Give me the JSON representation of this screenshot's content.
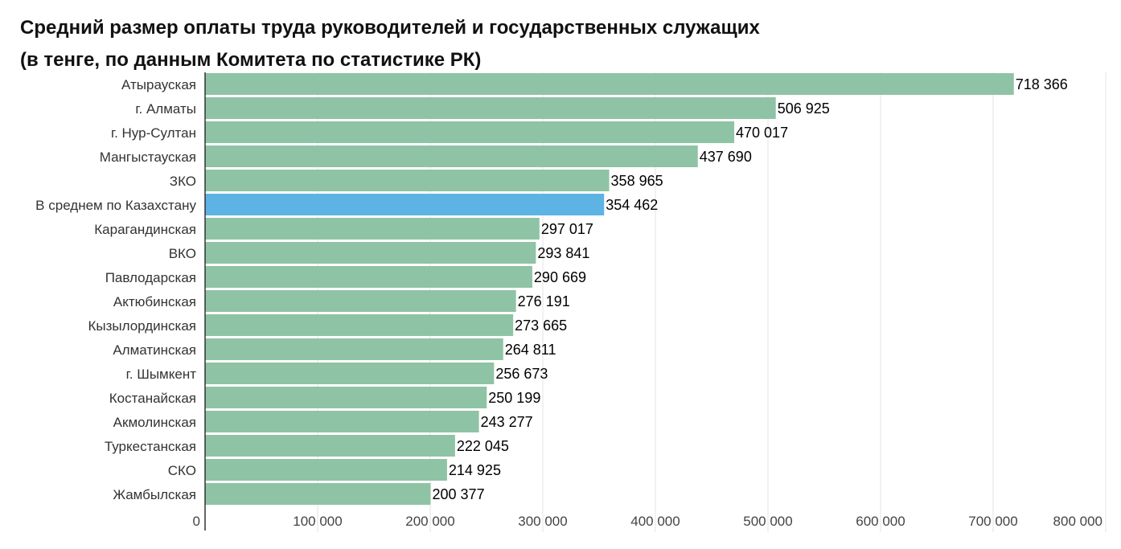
{
  "header": {
    "title_line1": "Средний размер оплаты труда руководителей и государственных служащих",
    "title_line2": "(в тенге, по данным Комитета по статистике РК)"
  },
  "chart_data": {
    "type": "bar",
    "orientation": "horizontal",
    "title": "Средний размер оплаты труда руководителей и государственных служащих",
    "subtitle": "(в тенге, по данным Комитета по статистике РК)",
    "xlim": [
      0,
      800000
    ],
    "x_ticks": [
      0,
      100000,
      200000,
      300000,
      400000,
      500000,
      600000,
      700000,
      800000
    ],
    "x_tick_labels": [
      "0",
      "100 000",
      "200 000",
      "300 000",
      "400 000",
      "500 000",
      "600 000",
      "700 000",
      "800 000"
    ],
    "grid": true,
    "colors": {
      "default": "#8fc3a5",
      "highlight": "#5db3e4"
    },
    "highlight_category": "В среднем по Казахстану",
    "categories": [
      "Атырауская",
      "г. Алматы",
      "г. Нур-Султан",
      "Мангыстауская",
      "ЗКО",
      "В среднем по Казахстану",
      "Карагандинская",
      "ВКО",
      "Павлодарская",
      "Актюбинская",
      "Кызылординская",
      "Алматинская",
      "г. Шымкент",
      "Костанайская",
      "Акмолинская",
      "Туркестанская",
      "СКО",
      "Жамбылская"
    ],
    "values": [
      718366,
      506925,
      470017,
      437690,
      358965,
      354462,
      297017,
      293841,
      290669,
      276191,
      273665,
      264811,
      256673,
      250199,
      243277,
      222045,
      214925,
      200377
    ],
    "value_labels": [
      "718 366",
      "506 925",
      "470 017",
      "437 690",
      "358 965",
      "354 462",
      "297 017",
      "293 841",
      "290 669",
      "276 191",
      "273 665",
      "264 811",
      "256 673",
      "250 199",
      "243 277",
      "222 045",
      "214 925",
      "200 377"
    ]
  }
}
